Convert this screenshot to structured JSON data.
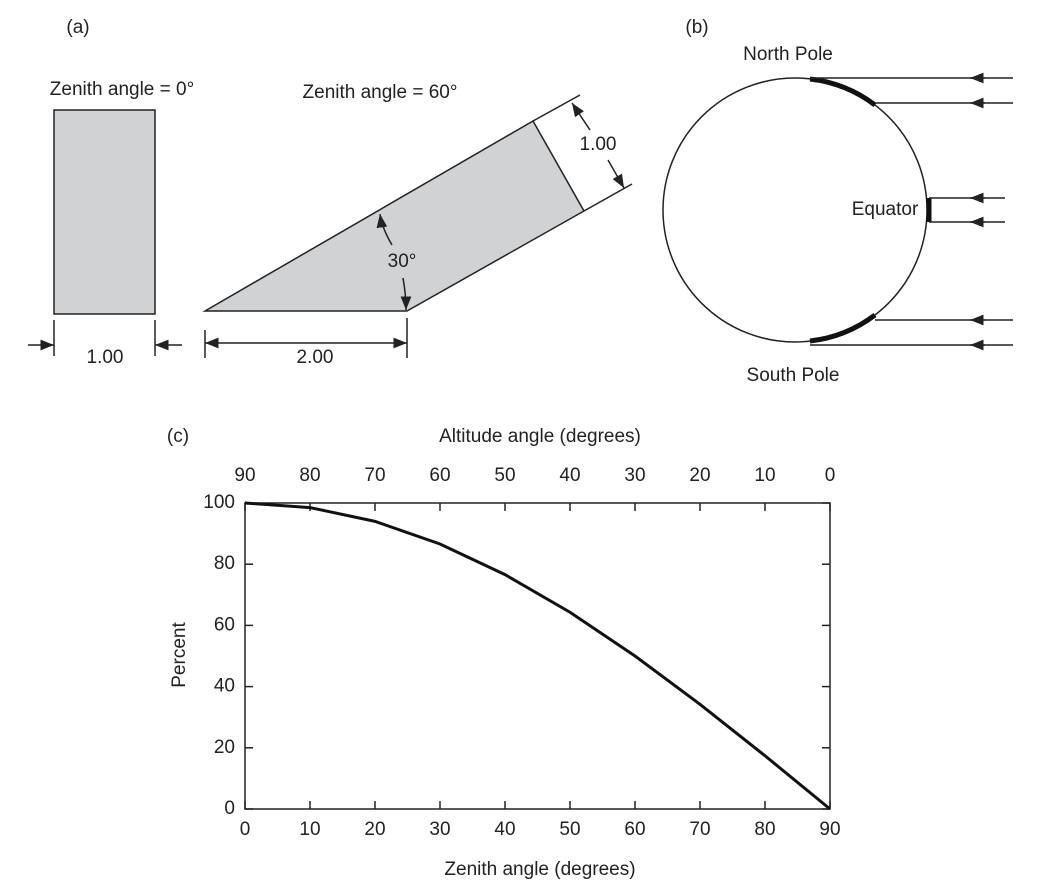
{
  "panel_a": {
    "label": "(a)",
    "left_title": "Zenith angle = 0°",
    "left_width": "1.00",
    "right_title": "Zenith angle = 60°",
    "right_width": "1.00",
    "angle": "30°",
    "base": "2.00"
  },
  "panel_b": {
    "label": "(b)",
    "north": "North Pole",
    "equator": "Equator",
    "south": "South Pole"
  },
  "chart_data": {
    "type": "line",
    "label": "(c)",
    "x2label": "Altitude angle (degrees)",
    "xlabel": "Zenith angle (degrees)",
    "ylabel": "Percent",
    "x": [
      0,
      10,
      20,
      30,
      40,
      50,
      60,
      70,
      80,
      90
    ],
    "series": [
      {
        "name": "Percent",
        "color": "#111111",
        "values": [
          100,
          98.5,
          94,
          86.6,
          76.6,
          64.3,
          50,
          34.2,
          17.4,
          0
        ]
      }
    ],
    "xlim": [
      0,
      90
    ],
    "xticks": [
      0,
      10,
      20,
      30,
      40,
      50,
      60,
      70,
      80,
      90
    ],
    "x2lim": [
      90,
      0
    ],
    "x2ticks": [
      90,
      80,
      70,
      60,
      50,
      40,
      30,
      20,
      10,
      0
    ],
    "ylim": [
      0,
      100
    ],
    "yticks": [
      0,
      20,
      40,
      60,
      80,
      100
    ],
    "grid": false
  }
}
